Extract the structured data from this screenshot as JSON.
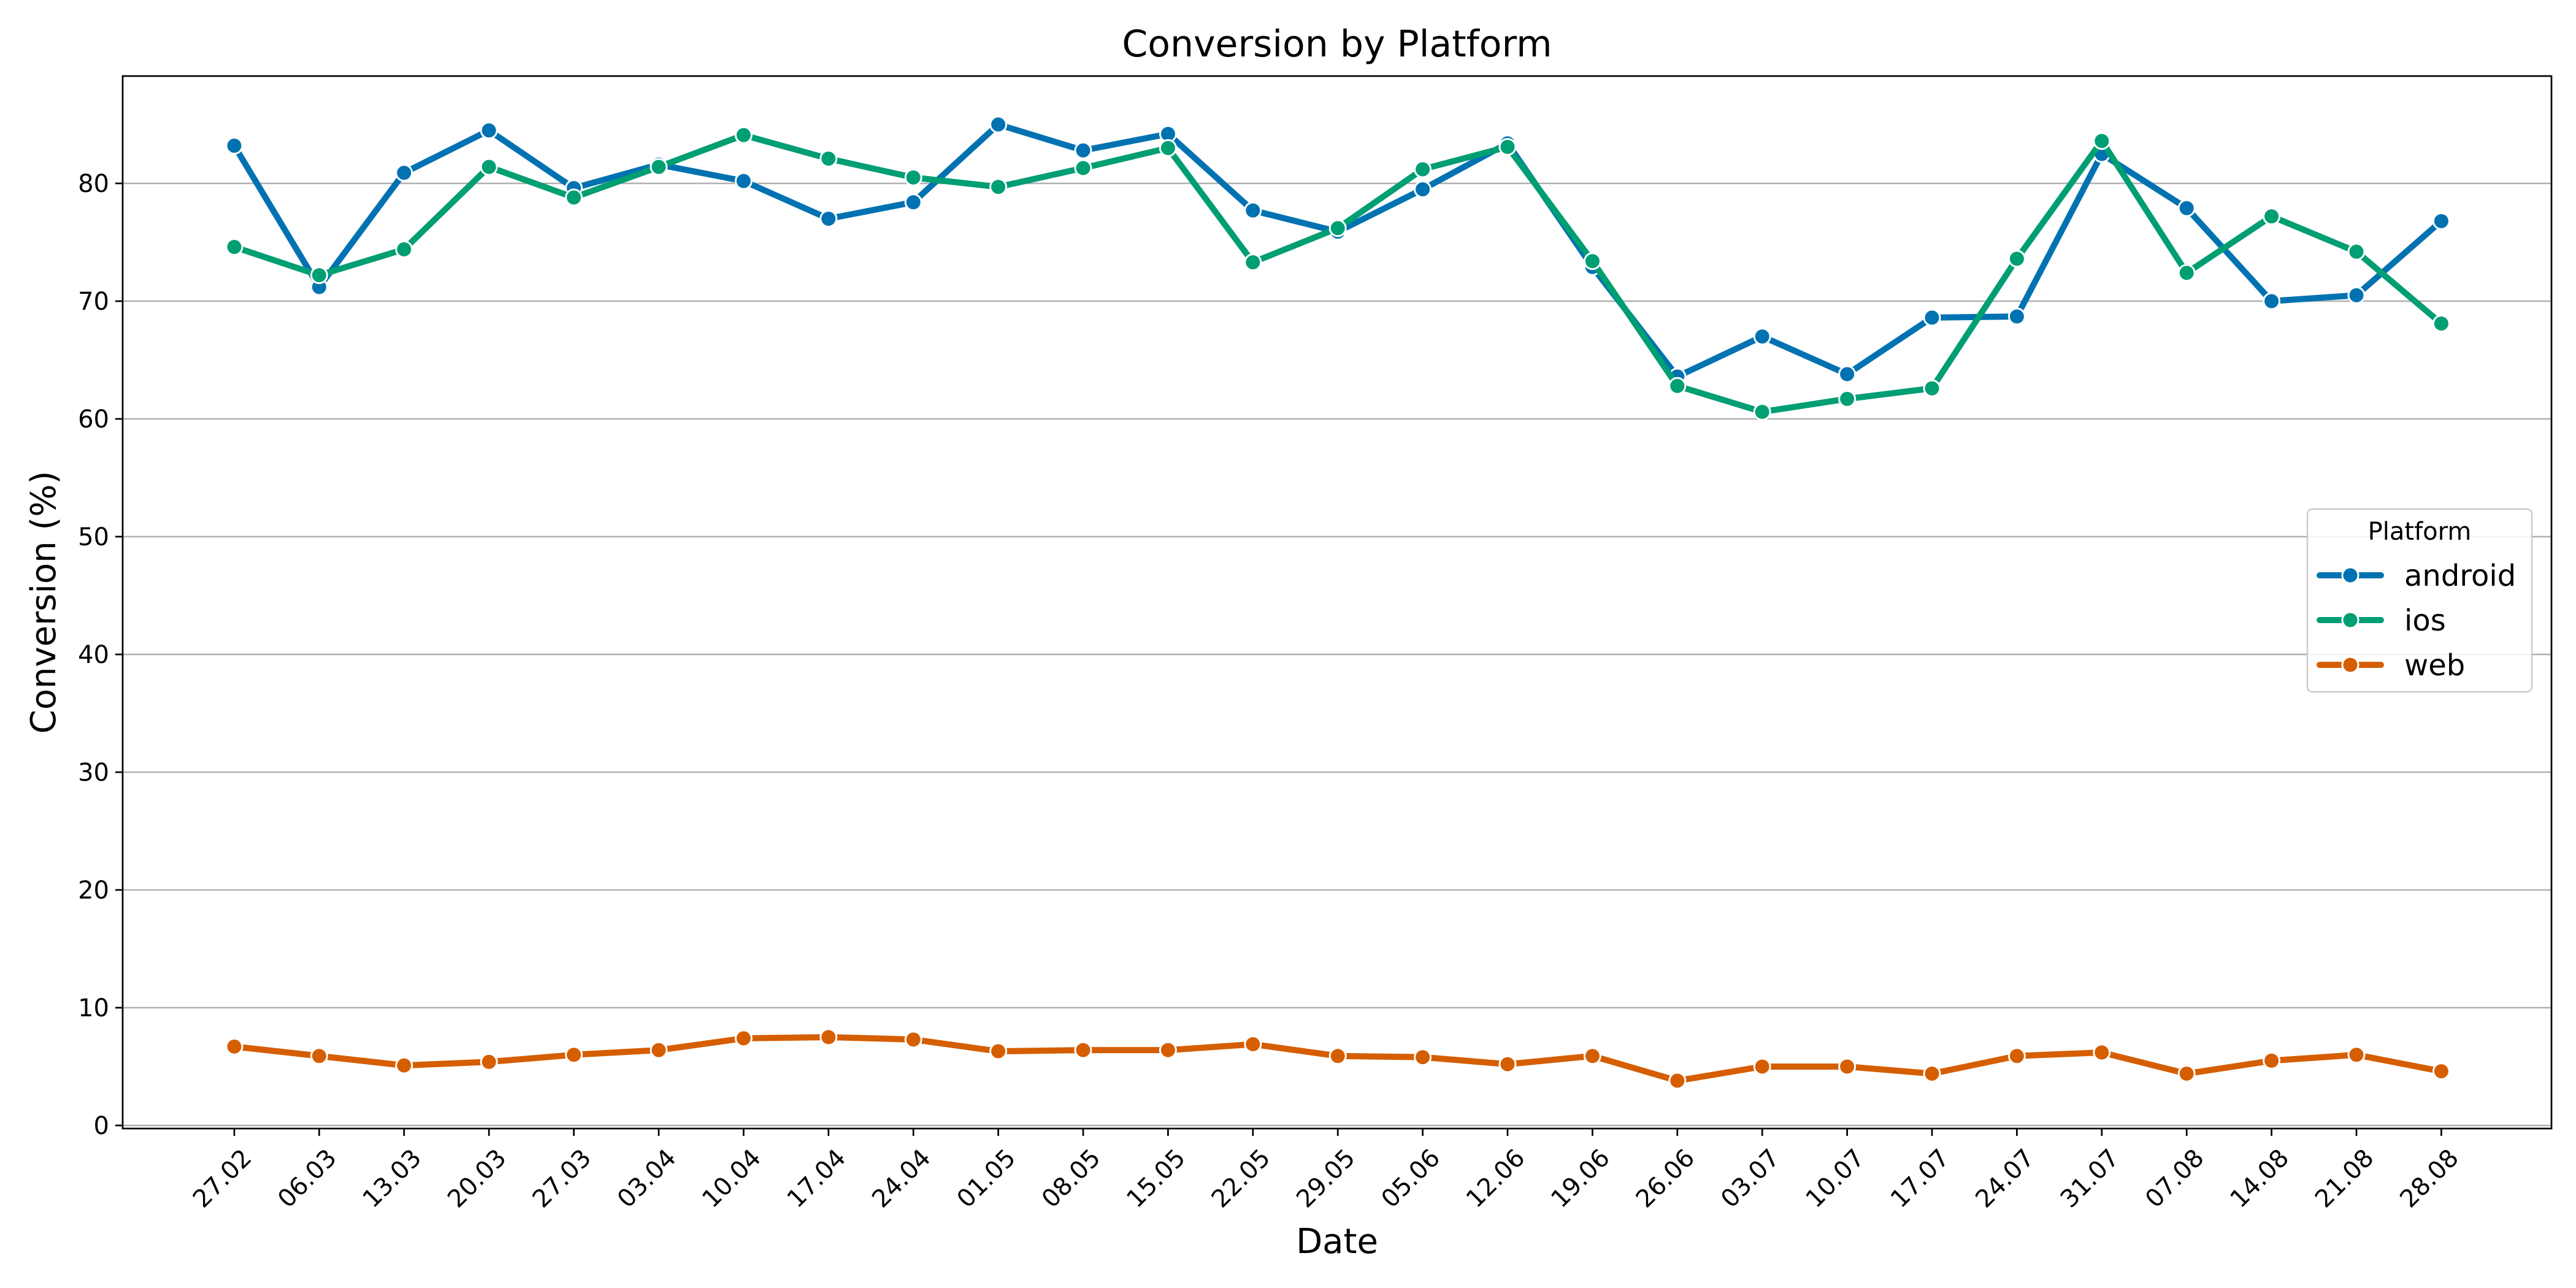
{
  "chart_data": {
    "type": "line",
    "title": "Conversion by Platform",
    "xlabel": "Date",
    "ylabel": "Conversion (%)",
    "ylim": [
      0,
      89
    ],
    "yticks": [
      0,
      10,
      20,
      30,
      40,
      50,
      60,
      70,
      80
    ],
    "grid": "horizontal",
    "legend": {
      "title": "Platform",
      "placement": "center-right"
    },
    "categories": [
      "27.02",
      "06.03",
      "13.03",
      "20.03",
      "27.03",
      "03.04",
      "10.04",
      "17.04",
      "24.04",
      "01.05",
      "08.05",
      "15.05",
      "22.05",
      "29.05",
      "05.06",
      "12.06",
      "19.06",
      "26.06",
      "03.07",
      "10.07",
      "17.07",
      "24.07",
      "31.07",
      "07.08",
      "14.08",
      "21.08",
      "28.08"
    ],
    "series": [
      {
        "name": "android",
        "color": "#0072b2",
        "values": [
          83.2,
          71.2,
          80.9,
          84.5,
          79.6,
          81.6,
          80.2,
          77.0,
          78.4,
          85.0,
          82.8,
          84.2,
          77.7,
          75.9,
          79.5,
          83.4,
          72.9,
          63.6,
          67.0,
          63.8,
          68.6,
          68.7,
          82.5,
          77.9,
          70.0,
          70.5,
          76.8
        ]
      },
      {
        "name": "ios",
        "color": "#009e73",
        "values": [
          74.6,
          72.2,
          74.4,
          81.4,
          78.8,
          81.4,
          84.1,
          82.1,
          80.5,
          79.7,
          81.3,
          83.0,
          73.3,
          76.2,
          81.2,
          83.1,
          73.4,
          62.8,
          60.6,
          61.7,
          62.6,
          73.6,
          83.6,
          72.4,
          77.2,
          74.2,
          68.1
        ]
      },
      {
        "name": "web",
        "color": "#d55e00",
        "values": [
          6.7,
          5.9,
          5.1,
          5.4,
          6.0,
          6.4,
          7.4,
          7.5,
          7.3,
          6.3,
          6.4,
          6.4,
          6.9,
          5.9,
          5.8,
          5.2,
          5.9,
          3.8,
          5.0,
          5.0,
          4.4,
          5.9,
          6.2,
          4.4,
          5.5,
          6.0,
          4.6
        ]
      }
    ]
  }
}
